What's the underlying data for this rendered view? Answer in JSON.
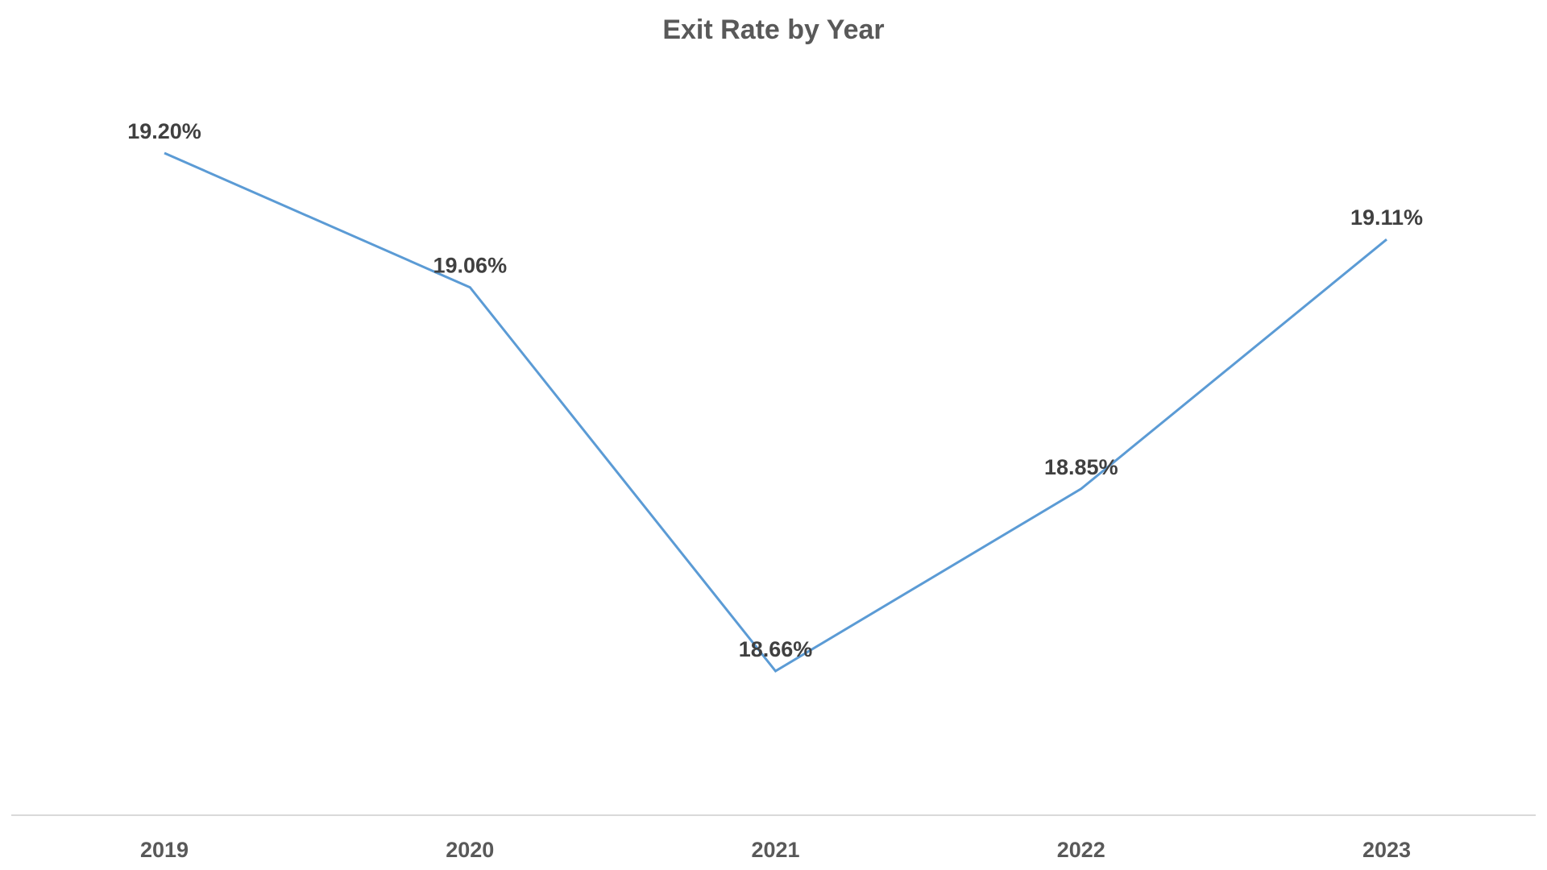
{
  "chart_data": {
    "type": "line",
    "title": "Exit Rate by Year",
    "xlabel": "",
    "ylabel": "",
    "categories": [
      "2019",
      "2020",
      "2021",
      "2022",
      "2023"
    ],
    "series": [
      {
        "values": [
          19.2,
          19.06,
          18.66,
          18.85,
          19.11
        ],
        "labels": [
          "19.20%",
          "19.06%",
          "18.66%",
          "18.85%",
          "19.11%"
        ]
      }
    ],
    "y_axis_visible": false,
    "grid": false,
    "legend": "none",
    "colors": {
      "line": "#5B9BD5",
      "axis": "#D9D9D9",
      "title": "#595959",
      "data_label": "#404040",
      "tick_label": "#595959"
    }
  }
}
